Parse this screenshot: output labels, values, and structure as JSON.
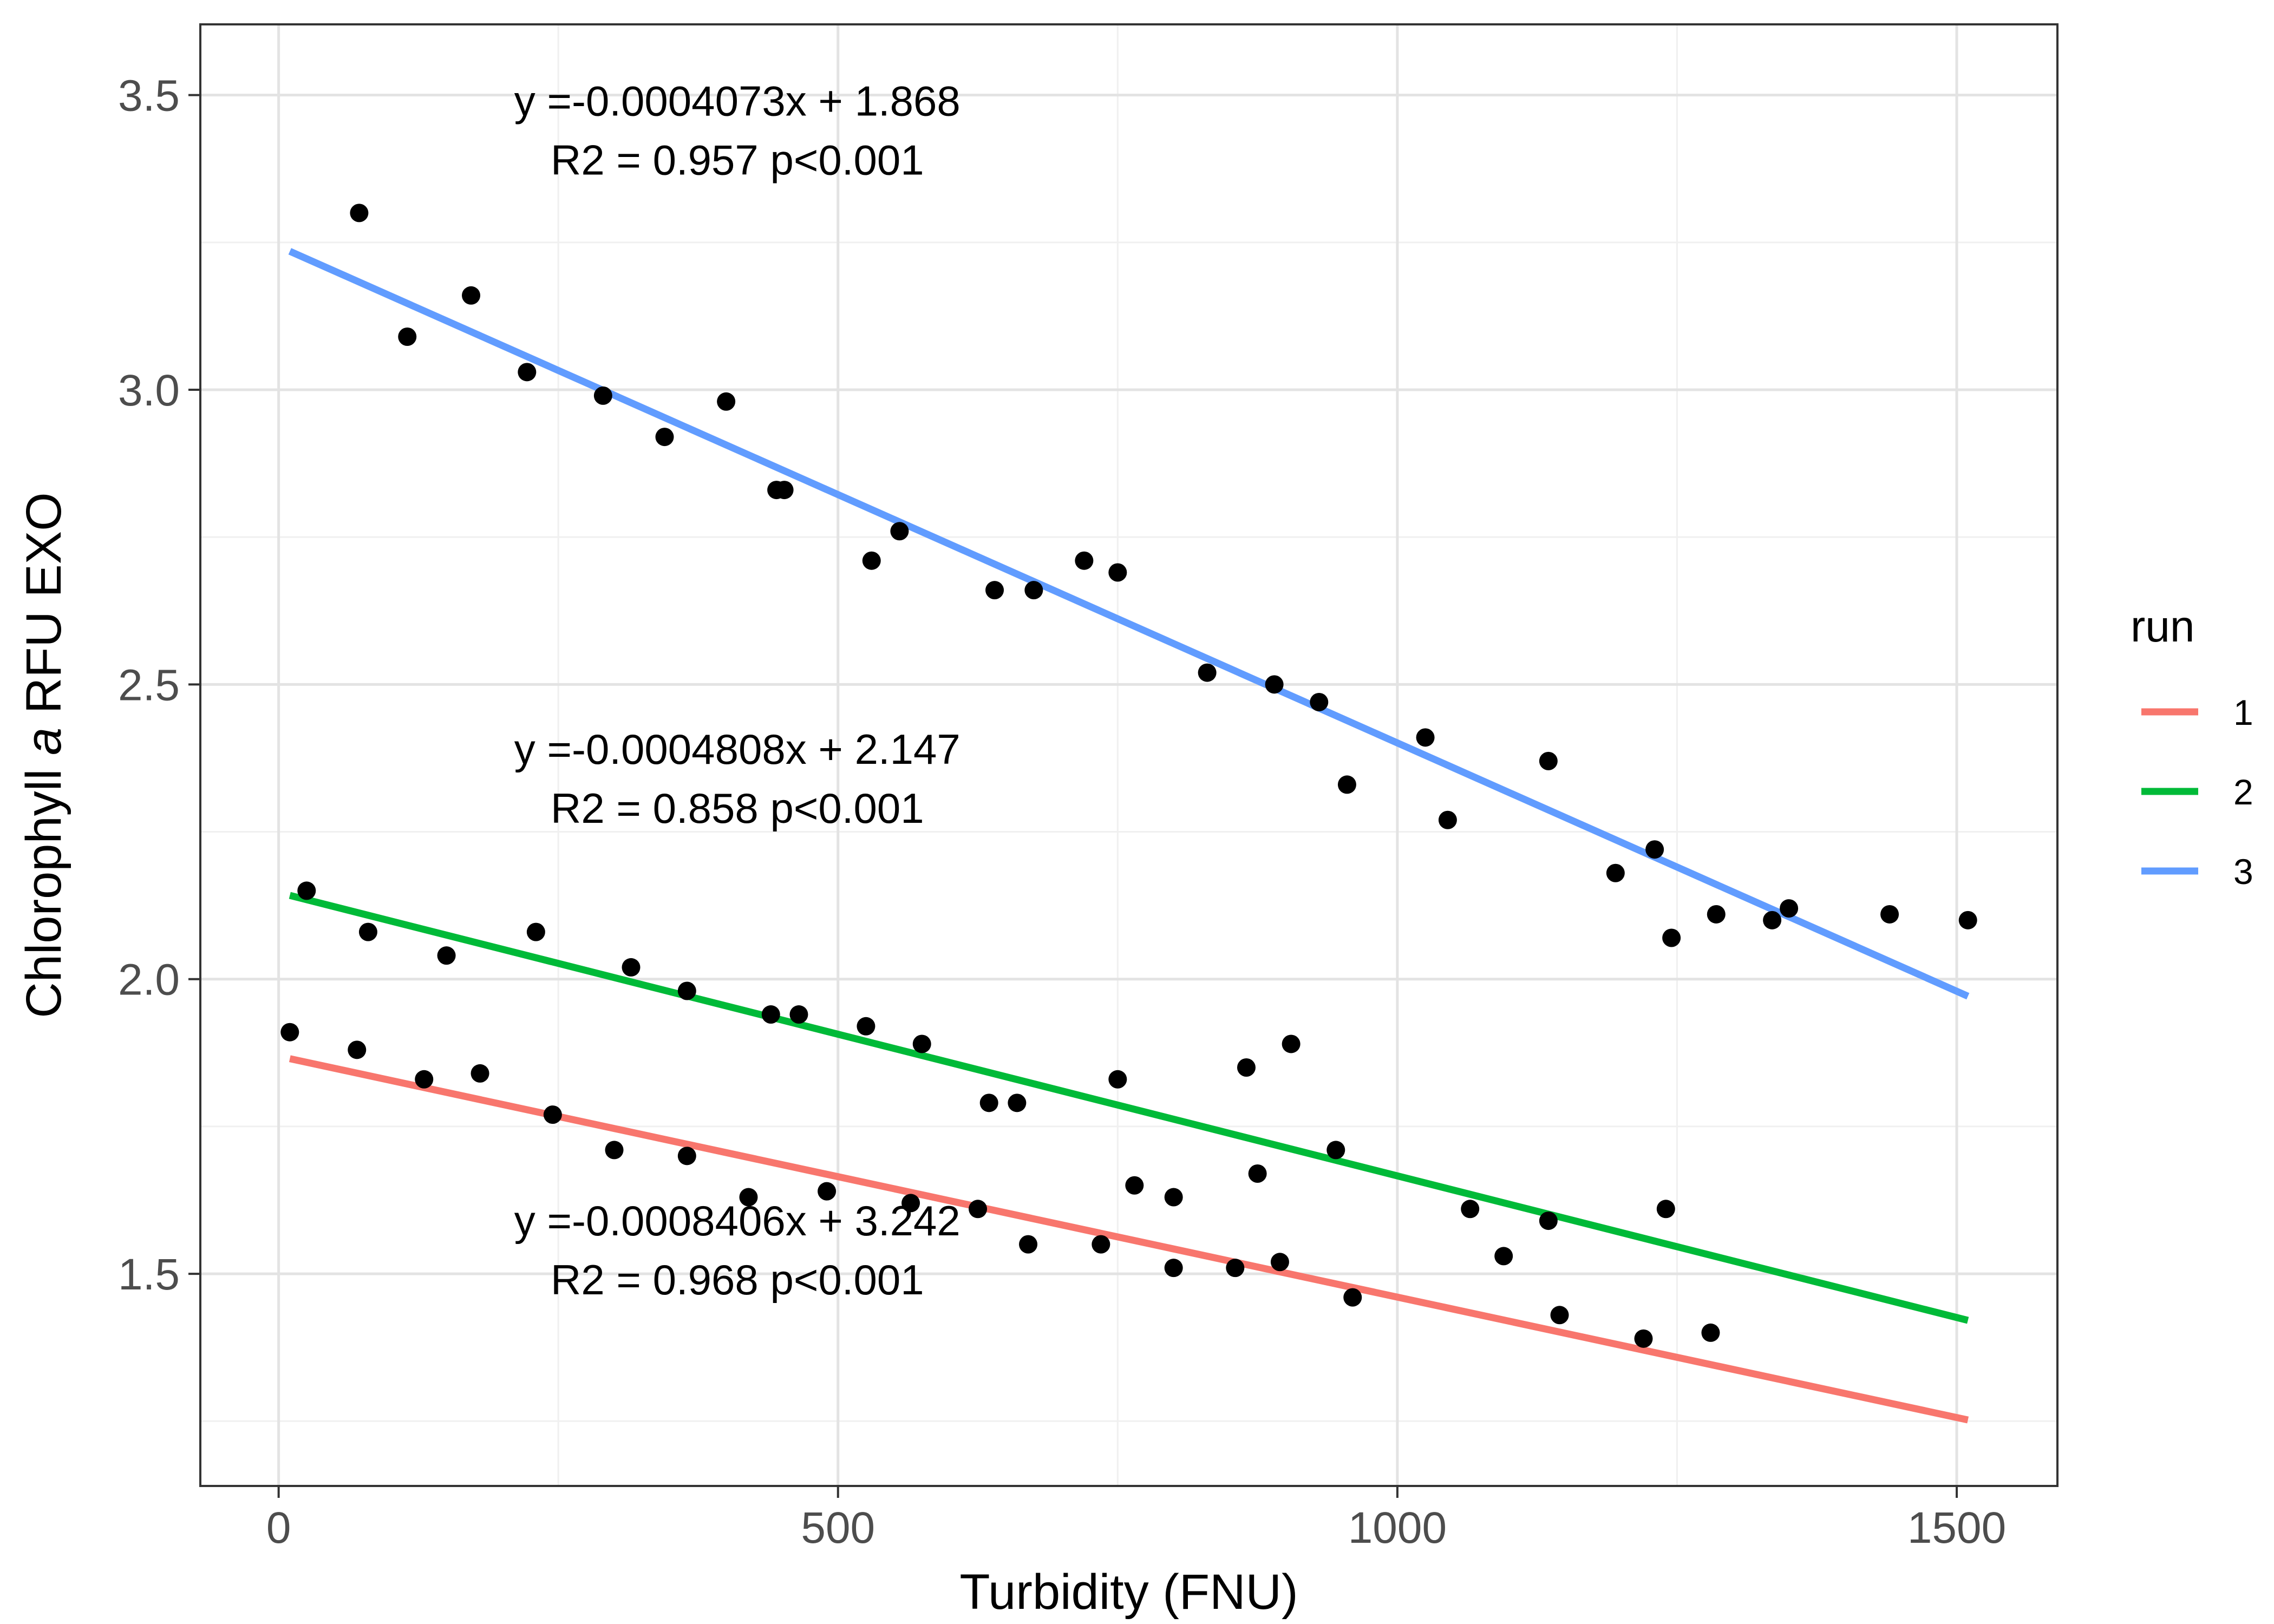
{
  "chart_data": {
    "type": "scatter",
    "xlabel": "Turbidity (FNU)",
    "ylabel_parts": [
      "Chlorophyll ",
      "a",
      " RFU EXO"
    ],
    "xlim": [
      -70,
      1590
    ],
    "ylim": [
      1.14,
      3.62
    ],
    "x_ticks": [
      0,
      500,
      1000,
      1500
    ],
    "x_tick_labels": [
      "0",
      "500",
      "1000",
      "1500"
    ],
    "y_ticks": [
      1.5,
      2.0,
      2.5,
      3.0,
      3.5
    ],
    "y_tick_labels": [
      "1.5",
      "2.0",
      "2.5",
      "3.0",
      "3.5"
    ],
    "grid": true,
    "legend": {
      "title": "run",
      "placement": "right",
      "entries": [
        {
          "label": "1",
          "color": "#F8766D"
        },
        {
          "label": "2",
          "color": "#00BA38"
        },
        {
          "label": "3",
          "color": "#619CFF"
        }
      ]
    },
    "series": [
      {
        "name": "1",
        "color": "#F8766D",
        "line": {
          "x": [
            10,
            1510
          ],
          "y": [
            1.865,
            1.252
          ]
        },
        "points": [
          [
            10,
            1.91
          ],
          [
            70,
            1.88
          ],
          [
            130,
            1.83
          ],
          [
            180,
            1.84
          ],
          [
            245,
            1.77
          ],
          [
            300,
            1.71
          ],
          [
            365,
            1.7
          ],
          [
            420,
            1.63
          ],
          [
            490,
            1.64
          ],
          [
            565,
            1.62
          ],
          [
            625,
            1.61
          ],
          [
            670,
            1.55
          ],
          [
            735,
            1.55
          ],
          [
            800,
            1.51
          ],
          [
            855,
            1.51
          ],
          [
            895,
            1.52
          ],
          [
            960,
            1.46
          ],
          [
            1145,
            1.43
          ],
          [
            1220,
            1.39
          ],
          [
            1280,
            1.4
          ]
        ]
      },
      {
        "name": "2",
        "color": "#00BA38",
        "line": {
          "x": [
            10,
            1510
          ],
          "y": [
            2.142,
            1.421
          ]
        },
        "points": [
          [
            25,
            2.15
          ],
          [
            80,
            2.08
          ],
          [
            150,
            2.04
          ],
          [
            230,
            2.08
          ],
          [
            315,
            2.02
          ],
          [
            365,
            1.98
          ],
          [
            440,
            1.94
          ],
          [
            465,
            1.94
          ],
          [
            525,
            1.92
          ],
          [
            575,
            1.89
          ],
          [
            635,
            1.79
          ],
          [
            660,
            1.79
          ],
          [
            750,
            1.83
          ],
          [
            765,
            1.65
          ],
          [
            800,
            1.63
          ],
          [
            865,
            1.85
          ],
          [
            875,
            1.67
          ],
          [
            905,
            1.89
          ],
          [
            945,
            1.71
          ],
          [
            1065,
            1.61
          ],
          [
            1095,
            1.53
          ],
          [
            1135,
            1.59
          ],
          [
            1240,
            1.61
          ]
        ]
      },
      {
        "name": "3",
        "color": "#619CFF",
        "line": {
          "x": [
            10,
            1510
          ],
          "y": [
            3.235,
            1.971
          ]
        },
        "points": [
          [
            72,
            3.3
          ],
          [
            115,
            3.09
          ],
          [
            172,
            3.16
          ],
          [
            222,
            3.03
          ],
          [
            290,
            2.99
          ],
          [
            345,
            2.92
          ],
          [
            400,
            2.98
          ],
          [
            445,
            2.83
          ],
          [
            452,
            2.83
          ],
          [
            530,
            2.71
          ],
          [
            555,
            2.76
          ],
          [
            640,
            2.66
          ],
          [
            675,
            2.66
          ],
          [
            720,
            2.71
          ],
          [
            750,
            2.69
          ],
          [
            830,
            2.52
          ],
          [
            890,
            2.5
          ],
          [
            930,
            2.47
          ],
          [
            955,
            2.33
          ],
          [
            1025,
            2.41
          ],
          [
            1045,
            2.27
          ],
          [
            1135,
            2.37
          ],
          [
            1195,
            2.18
          ],
          [
            1230,
            2.22
          ],
          [
            1245,
            2.07
          ],
          [
            1285,
            2.11
          ],
          [
            1335,
            2.1
          ],
          [
            1350,
            2.12
          ],
          [
            1440,
            2.11
          ],
          [
            1510,
            2.1
          ]
        ]
      }
    ],
    "annotations": [
      {
        "x": 410,
        "y": 3.49,
        "text": "y =-0.0004073x + 1.868"
      },
      {
        "x": 410,
        "y": 3.39,
        "text": "R2 = 0.957 p<0.001"
      },
      {
        "x": 410,
        "y": 2.39,
        "text": "y =-0.0004808x + 2.147"
      },
      {
        "x": 410,
        "y": 2.29,
        "text": "R2 = 0.858 p<0.001"
      },
      {
        "x": 410,
        "y": 1.59,
        "text": "y =-0.0008406x + 3.242"
      },
      {
        "x": 410,
        "y": 1.49,
        "text": "R2 = 0.968 p<0.001"
      }
    ]
  }
}
